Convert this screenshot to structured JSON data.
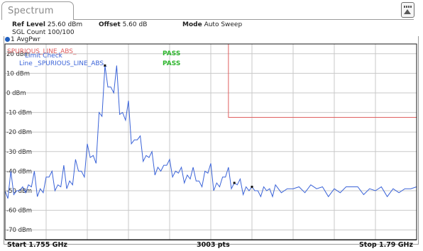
{
  "tab": {
    "label": "Spectrum"
  },
  "settings": {
    "ref_level_label": "Ref Level",
    "ref_level_value": "25.60 dBm",
    "offset_label": "Offset",
    "offset_value": "5.60 dB",
    "mode_label": "Mode",
    "mode_value": "Auto Sweep",
    "sgl_count": "SGL Count 100/100"
  },
  "trace": {
    "label": "1 AvgPwr",
    "color": "#3a63d8"
  },
  "limit_lines": {
    "overlay_label": "SPURIOUS_LINE_ABS_",
    "check_label": "Limit Check",
    "line_label": "Line  _SPURIOUS_LINE_ABS_",
    "check_result": "PASS",
    "line_result": "PASS",
    "limit_color": "#e06060",
    "pass_color": "#2db52d"
  },
  "chart_data": {
    "type": "line",
    "xlabel": "",
    "ylabel": "",
    "x_range_ghz": [
      1.755,
      1.79
    ],
    "y_range_dbm": [
      -75,
      25
    ],
    "y_ticks": [
      {
        "label": "20 dBm",
        "value": 20
      },
      {
        "label": "10 dBm",
        "value": 10
      },
      {
        "label": "0 dBm",
        "value": 0
      },
      {
        "label": "-10 dBm",
        "value": -10
      },
      {
        "label": "-20 dBm",
        "value": -20
      },
      {
        "label": "-30 dBm",
        "value": -30
      },
      {
        "label": "-40 dBm",
        "value": -40
      },
      {
        "label": "-50 dBm",
        "value": -50
      },
      {
        "label": "-60 dBm",
        "value": -60
      },
      {
        "label": "-70 dBm",
        "value": -70
      }
    ],
    "grid": true,
    "series": [
      {
        "values_note": "",
        "x": [
          1.755,
          1.7555,
          1.756,
          1.7565,
          1.757,
          1.7575,
          1.758,
          1.7585,
          1.759,
          1.7595,
          1.76,
          1.7605,
          1.761,
          1.7615,
          1.762,
          1.7625,
          1.763,
          1.7635,
          1.764,
          1.7645,
          1.765,
          1.7655,
          1.766,
          1.7665,
          1.767,
          1.7675,
          1.768,
          1.7685,
          1.769,
          1.7695,
          1.77,
          1.7705,
          1.771,
          1.7715,
          1.772,
          1.7725,
          1.773,
          1.7735,
          1.774,
          1.7745,
          1.775,
          1.7755,
          1.776,
          1.7765,
          1.777,
          1.7775,
          1.778,
          1.779,
          1.78,
          1.781,
          1.782,
          1.783,
          1.784,
          1.785,
          1.786,
          1.787,
          1.788,
          1.789,
          1.79
        ],
        "y": [
          -50,
          -40,
          -50,
          -48,
          -47,
          -40,
          -49,
          -43,
          -40,
          -47,
          -37,
          -45,
          -34,
          -40,
          -26,
          -32,
          -10,
          14,
          3,
          14,
          -10,
          -4,
          -24,
          -22,
          -32,
          -30,
          -38,
          -37,
          -34,
          -40,
          -38,
          -42,
          -38,
          -45,
          -40,
          -36,
          -46,
          -43,
          -38,
          -46,
          -44,
          -48,
          -48,
          -50,
          -48,
          -49,
          -47,
          -49,
          -48,
          -47,
          -48,
          -49,
          -48,
          -48,
          -49,
          -48,
          -49,
          -49,
          -48
        ]
      }
    ],
    "limit_line": {
      "x_start_ghz": 1.774,
      "x_end_ghz": 1.79,
      "upper_dbm": 25,
      "lower_dbm": -12.5
    }
  },
  "footer": {
    "start_label": "Start 1.755 GHz",
    "points_label": "3003 pts",
    "stop_label": "Stop 1.79 GHz"
  }
}
